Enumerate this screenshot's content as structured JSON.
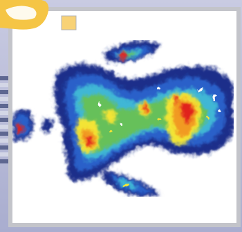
{
  "image": {
    "description_kind": "heatmap-photograph",
    "colors": {
      "background_lavender": "#b9bddc",
      "frame_gray": "#bfc0c6",
      "panel_white": "#ffffff",
      "corner_yellow": "#f5c545",
      "badge_yellow": "#f8d276",
      "stripe_dark": "#5e6791",
      "stripe_light": "#d3d6e6",
      "heat_navy": "#1e2f8a",
      "heat_blue": "#2a61c9",
      "heat_cyan": "#3fb7d5",
      "heat_green": "#66c05a",
      "heat_yellow": "#f3e434",
      "heat_orange": "#f19a22",
      "heat_red": "#e0201e"
    }
  }
}
